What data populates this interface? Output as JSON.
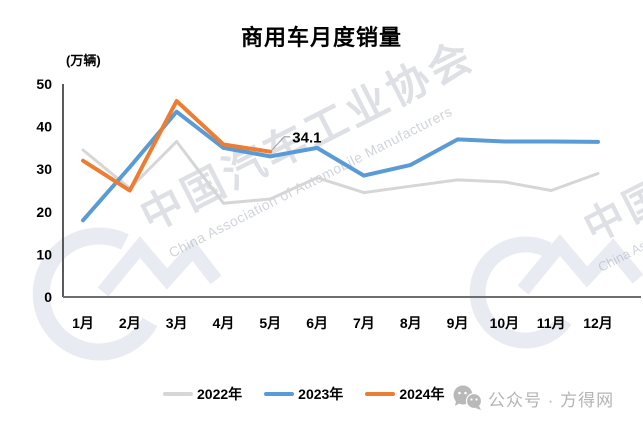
{
  "title": "商用车月度销量",
  "y_unit_label": "(万辆)",
  "watermark": {
    "cn": "中国汽车工业协会",
    "en": "China Association of Automobile Manufacturers",
    "cn_partial": "中国汽",
    "en_partial": "China Ass"
  },
  "legend": [
    {
      "label": "2022年",
      "color": "#d6d6d6"
    },
    {
      "label": "2023年",
      "color": "#5b9bd5"
    },
    {
      "label": "2024年",
      "color": "#ed7d31"
    }
  ],
  "footer": {
    "wechat_label": "公众号 · 方得网"
  },
  "chart_data": {
    "type": "line",
    "title": "商用车月度销量",
    "ylabel": "(万辆)",
    "categories": [
      "1月",
      "2月",
      "3月",
      "4月",
      "5月",
      "6月",
      "7月",
      "8月",
      "9月",
      "10月",
      "11月",
      "12月"
    ],
    "series": [
      {
        "name": "2022年",
        "color": "#d6d6d6",
        "stroke_width": 3,
        "values": [
          34.5,
          25.5,
          36.5,
          22,
          23,
          28,
          24.5,
          26,
          27.5,
          27,
          25,
          29
        ]
      },
      {
        "name": "2023年",
        "color": "#5b9bd5",
        "stroke_width": 4,
        "values": [
          18,
          30.5,
          43.5,
          35,
          33,
          35,
          28.5,
          31,
          37,
          36.5,
          36.5,
          36.4
        ]
      },
      {
        "name": "2024年",
        "color": "#ed7d31",
        "stroke_width": 4,
        "values": [
          32,
          25,
          46,
          35.8,
          34.1,
          null,
          null,
          null,
          null,
          null,
          null,
          null
        ]
      }
    ],
    "ylim": [
      0,
      50
    ],
    "yticks": [
      0,
      10,
      20,
      30,
      40,
      50
    ],
    "grid": false,
    "legend_position": "bottom",
    "annotation": {
      "series": "2024年",
      "category": "5月",
      "text": "34.1"
    }
  }
}
